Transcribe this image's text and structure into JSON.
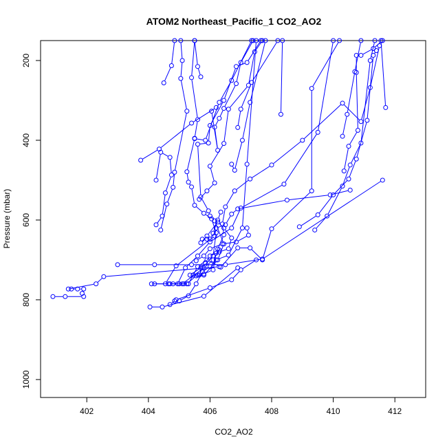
{
  "chart_data": {
    "type": "line",
    "title": "ATOM2 Northeast_Pacific_1 CO2_AO2",
    "xlabel": "CO2_AO2",
    "ylabel": "Pressure (mbar)",
    "xlim": [
      400.5,
      413
    ],
    "ylim": [
      1045,
      150
    ],
    "y_reversed": true,
    "x_ticks": [
      402,
      404,
      406,
      408,
      410,
      412
    ],
    "y_ticks": [
      200,
      400,
      600,
      800,
      1000
    ],
    "marker": "open-circle",
    "color": "#0000ff",
    "grid": false,
    "legend": "none",
    "series": [
      {
        "points": [
          [
            400.9,
            792
          ],
          [
            401.3,
            792
          ],
          [
            401.9,
            792
          ],
          [
            401.85,
            784
          ],
          [
            401.9,
            773
          ],
          [
            401.7,
            773
          ],
          [
            401.5,
            773
          ],
          [
            401.4,
            773
          ],
          [
            402.3,
            760
          ],
          [
            402.55,
            742
          ],
          [
            406.3,
            717
          ]
        ]
      },
      {
        "points": [
          [
            403.0,
            712
          ],
          [
            404.2,
            712
          ],
          [
            405.4,
            712
          ],
          [
            406.5,
            712
          ],
          [
            407.7,
            698
          ],
          [
            411.6,
            500
          ]
        ]
      },
      {
        "points": [
          [
            403.75,
            450
          ],
          [
            404.35,
            422
          ],
          [
            405.4,
            357
          ],
          [
            406.2,
            318
          ]
        ]
      },
      {
        "points": [
          [
            404.05,
            818
          ],
          [
            404.45,
            818
          ],
          [
            405.8,
            791
          ],
          [
            406.9,
            720
          ]
        ]
      },
      {
        "points": [
          [
            404.1,
            760
          ],
          [
            404.7,
            760
          ],
          [
            405.1,
            760
          ],
          [
            405.8,
            720
          ],
          [
            406.1,
            700
          ],
          [
            406.3,
            675
          ]
        ]
      },
      {
        "points": [
          [
            404.2,
            760
          ],
          [
            404.55,
            760
          ],
          [
            404.9,
            715
          ],
          [
            406.15,
            640
          ],
          [
            406.2,
            620
          ],
          [
            406.5,
            612
          ],
          [
            406.7,
            585
          ],
          [
            406.9,
            572
          ],
          [
            408.5,
            550
          ],
          [
            409.9,
            537
          ],
          [
            410.55,
            525
          ]
        ]
      },
      {
        "points": [
          [
            404.25,
            612
          ],
          [
            404.45,
            590
          ],
          [
            404.55,
            532
          ],
          [
            404.75,
            487
          ],
          [
            404.7,
            443
          ],
          [
            404.4,
            430
          ],
          [
            404.25,
            500
          ]
        ]
      },
      {
        "points": [
          [
            404.4,
            625
          ],
          [
            404.6,
            560
          ],
          [
            404.8,
            518
          ],
          [
            404.85,
            480
          ],
          [
            405.25,
            327
          ],
          [
            405.05,
            245
          ],
          [
            405.1,
            200
          ],
          [
            405.05,
            150
          ]
        ]
      },
      {
        "points": [
          [
            404.5,
            256
          ],
          [
            404.75,
            213
          ],
          [
            404.85,
            150
          ]
        ]
      },
      {
        "points": [
          [
            404.65,
            760
          ],
          [
            404.95,
            760
          ],
          [
            405.2,
            720
          ],
          [
            405.6,
            690
          ],
          [
            406.0,
            655
          ],
          [
            406.7,
            620
          ],
          [
            407.0,
            570
          ],
          [
            408.4,
            510
          ],
          [
            409.5,
            380
          ],
          [
            410.0,
            150
          ]
        ]
      },
      {
        "points": [
          [
            404.8,
            760
          ],
          [
            405.0,
            760
          ],
          [
            405.3,
            760
          ],
          [
            405.6,
            717
          ],
          [
            405.9,
            700
          ],
          [
            406.35,
            718
          ],
          [
            406.9,
            670
          ],
          [
            407.3,
            670
          ],
          [
            407.7,
            700
          ],
          [
            408.0,
            622
          ],
          [
            409.3,
            527
          ],
          [
            409.3,
            270
          ],
          [
            410.2,
            150
          ]
        ]
      },
      {
        "points": [
          [
            404.85,
            803
          ],
          [
            405.0,
            803
          ],
          [
            405.3,
            790
          ],
          [
            405.55,
            760
          ],
          [
            405.75,
            730
          ],
          [
            406.0,
            717
          ],
          [
            406.2,
            700
          ],
          [
            406.6,
            688
          ],
          [
            407.05,
            620
          ],
          [
            407.2,
            460
          ],
          [
            407.5,
            150
          ]
        ]
      },
      {
        "points": [
          [
            404.7,
            812
          ],
          [
            404.9,
            800
          ],
          [
            406.0,
            770
          ],
          [
            406.7,
            750
          ],
          [
            407.0,
            725
          ],
          [
            407.5,
            700
          ]
        ]
      },
      {
        "points": [
          [
            405.15,
            760
          ],
          [
            405.25,
            760
          ],
          [
            405.55,
            740
          ],
          [
            405.8,
            735
          ],
          [
            406.1,
            725
          ],
          [
            406.2,
            683
          ],
          [
            406.25,
            673
          ],
          [
            406.45,
            637
          ],
          [
            406.4,
            610
          ],
          [
            406.5,
            567
          ],
          [
            406.8,
            527
          ],
          [
            407.3,
            497
          ],
          [
            408.0,
            462
          ],
          [
            409.0,
            400
          ],
          [
            410.3,
            307
          ],
          [
            410.9,
            353
          ],
          [
            411.2,
            268
          ],
          [
            411.5,
            163
          ]
        ]
      },
      {
        "points": [
          [
            405.45,
            738
          ],
          [
            405.65,
            738
          ],
          [
            405.75,
            720
          ],
          [
            406.1,
            690
          ],
          [
            406.2,
            632
          ],
          [
            406.05,
            597
          ],
          [
            405.8,
            583
          ],
          [
            405.5,
            563
          ],
          [
            405.4,
            517
          ],
          [
            405.3,
            505
          ],
          [
            405.25,
            479
          ],
          [
            405.5,
            396
          ],
          [
            405.85,
            400
          ],
          [
            406.3,
            305
          ],
          [
            406.7,
            250
          ],
          [
            407.35,
            150
          ]
        ]
      },
      {
        "points": [
          [
            405.6,
            738
          ],
          [
            405.8,
            738
          ],
          [
            406.25,
            700
          ],
          [
            406.45,
            660
          ],
          [
            406.15,
            602
          ],
          [
            406.0,
            590
          ],
          [
            405.95,
            577
          ],
          [
            405.7,
            542
          ],
          [
            405.6,
            410
          ],
          [
            405.95,
            407
          ],
          [
            406.0,
            363
          ],
          [
            406.45,
            300
          ],
          [
            406.85,
            215
          ],
          [
            407.2,
            205
          ],
          [
            407.65,
            150
          ]
        ]
      },
      {
        "points": [
          [
            405.35,
            738
          ],
          [
            405.7,
            720
          ],
          [
            405.85,
            707
          ],
          [
            406.0,
            690
          ],
          [
            406.3,
            680
          ],
          [
            406.6,
            672
          ],
          [
            406.7,
            645
          ],
          [
            406.45,
            620
          ],
          [
            406.25,
            605
          ],
          [
            405.9,
            640
          ],
          [
            405.7,
            657
          ]
        ]
      },
      {
        "points": [
          [
            405.55,
            702
          ],
          [
            405.8,
            690
          ],
          [
            406.0,
            672
          ],
          [
            406.4,
            660
          ],
          [
            406.85,
            655
          ],
          [
            407.25,
            638
          ],
          [
            407.2,
            620
          ]
        ]
      },
      {
        "points": [
          [
            405.75,
            648
          ],
          [
            405.9,
            648
          ],
          [
            406.0,
            648
          ],
          [
            406.1,
            633
          ],
          [
            406.25,
            600
          ],
          [
            406.35,
            580
          ]
        ]
      },
      {
        "points": [
          [
            405.65,
            548
          ],
          [
            405.9,
            527
          ],
          [
            406.15,
            507
          ],
          [
            406.0,
            465
          ],
          [
            406.45,
            408
          ],
          [
            406.6,
            322
          ],
          [
            407.25,
            262
          ],
          [
            407.45,
            178
          ],
          [
            407.7,
            150
          ]
        ]
      },
      {
        "points": [
          [
            405.5,
            395
          ],
          [
            405.6,
            348
          ],
          [
            405.4,
            243
          ],
          [
            405.5,
            150
          ]
        ]
      },
      {
        "points": [
          [
            405.7,
            241
          ],
          [
            405.6,
            215
          ],
          [
            405.5,
            150
          ]
        ]
      },
      {
        "points": [
          [
            406.05,
            327
          ],
          [
            406.25,
            425
          ],
          [
            406.15,
            367
          ],
          [
            406.3,
            345
          ],
          [
            406.45,
            320
          ],
          [
            406.85,
            258
          ],
          [
            407.0,
            205
          ],
          [
            407.4,
            150
          ]
        ]
      },
      {
        "points": [
          [
            406.9,
            368
          ],
          [
            407.0,
            322
          ],
          [
            407.35,
            255
          ],
          [
            408.2,
            150
          ]
        ]
      },
      {
        "points": [
          [
            406.7,
            460
          ],
          [
            406.8,
            475
          ],
          [
            407.05,
            400
          ],
          [
            407.3,
            305
          ],
          [
            407.8,
            150
          ]
        ]
      },
      {
        "points": [
          [
            408.3,
            335
          ],
          [
            408.35,
            150
          ]
        ]
      },
      {
        "points": [
          [
            408.9,
            617
          ],
          [
            409.5,
            587
          ],
          [
            410.0,
            537
          ],
          [
            410.5,
            497
          ],
          [
            410.75,
            447
          ],
          [
            411.1,
            350
          ],
          [
            411.3,
            187
          ],
          [
            411.4,
            175
          ]
        ]
      },
      {
        "points": [
          [
            409.4,
            625
          ],
          [
            409.8,
            590
          ],
          [
            410.3,
            515
          ],
          [
            410.55,
            462
          ],
          [
            410.9,
            407
          ],
          [
            411.2,
            200
          ],
          [
            411.35,
            150
          ]
        ]
      },
      {
        "points": [
          [
            410.35,
            477
          ],
          [
            410.5,
            415
          ],
          [
            410.8,
            375
          ],
          [
            410.75,
            230
          ],
          [
            410.75,
            187
          ],
          [
            410.9,
            187
          ],
          [
            411.3,
            170
          ],
          [
            411.6,
            150
          ]
        ]
      },
      {
        "points": [
          [
            410.3,
            390
          ],
          [
            410.45,
            335
          ],
          [
            410.7,
            228
          ],
          [
            410.9,
            150
          ]
        ]
      },
      {
        "points": [
          [
            411.7,
            318
          ],
          [
            411.55,
            150
          ]
        ]
      }
    ]
  }
}
